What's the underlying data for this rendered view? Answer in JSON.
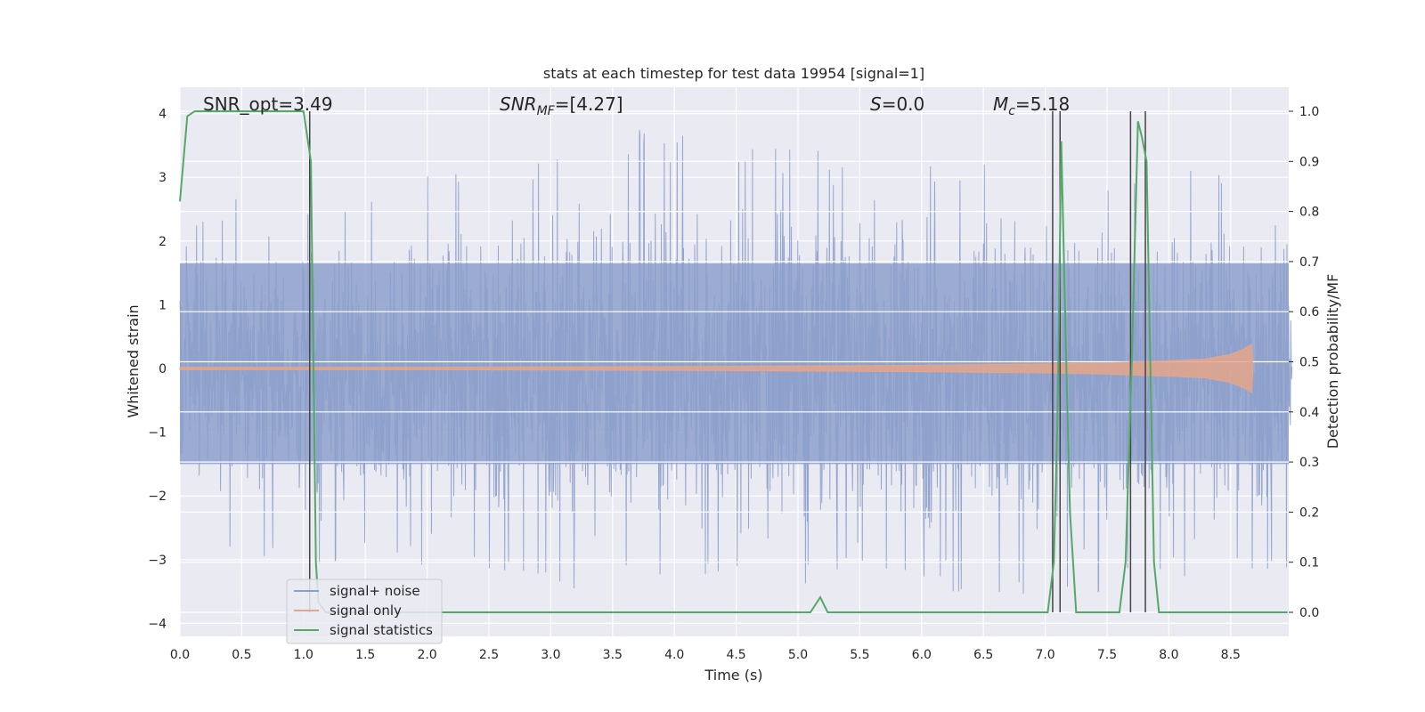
{
  "chart_data": {
    "type": "line",
    "title": "stats at each timestep for test data 19954 [signal=1]",
    "xlabel": "Time (s)",
    "ylabel": "Whitened strain",
    "ylabel_right": "Detection probability/MF",
    "xlim": [
      0.0,
      9.0
    ],
    "ylim": [
      -4.2,
      4.4
    ],
    "ylim_right": [
      -0.05,
      1.04
    ],
    "xticks": [
      "0.0",
      "0.5",
      "1.0",
      "1.5",
      "2.0",
      "2.5",
      "3.0",
      "3.5",
      "4.0",
      "4.5",
      "5.0",
      "5.5",
      "6.0",
      "6.5",
      "7.0",
      "7.5",
      "8.0",
      "8.5"
    ],
    "yticks": [
      "4",
      "3",
      "2",
      "1",
      "0",
      "−1",
      "−2",
      "−3",
      "−4"
    ],
    "yticks_right": [
      "1.0",
      "0.9",
      "0.8",
      "0.7",
      "0.6",
      "0.5",
      "0.4",
      "0.3",
      "0.2",
      "0.1",
      "0.0"
    ],
    "grid": true,
    "legend_position": "lower-left",
    "annotations": {
      "snr_opt": "SNR_opt=3.49",
      "snr_mf_main": "SNR",
      "snr_mf_sub": "MF",
      "snr_mf_rest": "=[4.27]",
      "s_main": "S",
      "s_rest": "=0.0",
      "mc_main": "M",
      "mc_sub": "c",
      "mc_rest": "=5.18"
    },
    "series": [
      {
        "name": "signal+ noise",
        "color": "#8da0cb",
        "noise_envelope_upper": [
          2.3,
          2.7,
          2.6,
          2.8,
          3.1,
          3.0,
          3.4,
          3.7,
          3.8,
          3.6,
          3.5,
          3.4,
          3.5,
          3.3,
          3.4,
          3.1,
          3.2,
          3.0
        ],
        "noise_envelope_lower": [
          -3.2,
          -2.9,
          -3.1,
          -3.0,
          -3.1,
          -3.2,
          -3.3,
          -3.8,
          -3.2,
          -3.3,
          -3.5,
          -3.0,
          -3.4,
          -3.6,
          -3.8,
          -3.5,
          -3.3,
          -3.2
        ]
      },
      {
        "name": "signal only",
        "color": "#e5a58a",
        "x": [
          0.0,
          2.0,
          4.0,
          5.0,
          6.0,
          7.0,
          7.5,
          8.0,
          8.3,
          8.5,
          8.6,
          8.67,
          8.68
        ],
        "amplitude": [
          0.02,
          0.02,
          0.03,
          0.04,
          0.05,
          0.07,
          0.09,
          0.12,
          0.15,
          0.22,
          0.3,
          0.38,
          0.0
        ]
      },
      {
        "name": "signal statistics",
        "color": "#55a868",
        "axis": "right",
        "x": [
          0.0,
          0.06,
          0.12,
          0.18,
          1.0,
          1.06,
          1.1,
          1.12,
          1.18,
          5.1,
          5.18,
          5.24,
          6.95,
          7.02,
          7.07,
          7.1,
          7.13,
          7.17,
          7.2,
          7.25,
          7.6,
          7.65,
          7.7,
          7.75,
          7.78,
          7.82,
          7.88,
          7.92,
          8.96
        ],
        "values": [
          0.82,
          0.99,
          1.0,
          1.0,
          1.0,
          0.9,
          0.1,
          0.02,
          0.0,
          0.0,
          0.03,
          0.0,
          0.0,
          0.0,
          0.1,
          0.4,
          0.94,
          0.5,
          0.2,
          0.0,
          0.0,
          0.1,
          0.5,
          0.98,
          0.95,
          0.9,
          0.1,
          0.0,
          0.0
        ]
      }
    ],
    "vertical_lines_x": [
      1.05,
      7.06,
      7.12,
      7.69,
      7.81
    ]
  }
}
